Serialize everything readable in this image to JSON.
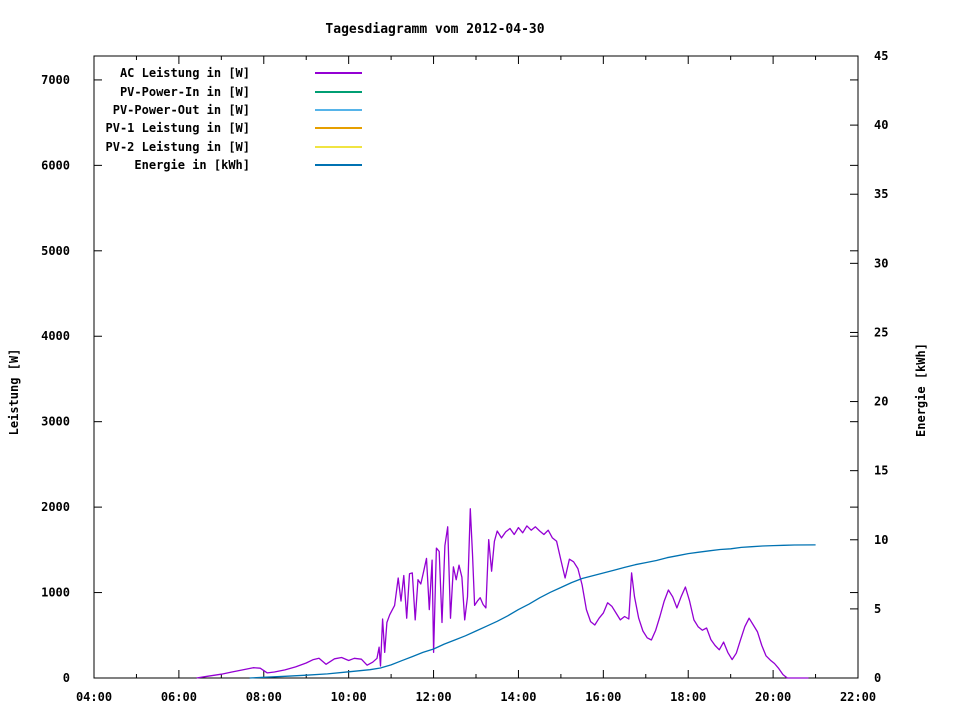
{
  "title": "Tagesdiagramm vom 2012-04-30",
  "background_color": "#ffffff",
  "text_color": "#000000",
  "chart_data": {
    "type": "line",
    "title": "Tagesdiagramm vom 2012-04-30",
    "grid": false,
    "legend_position": "top-left-inside",
    "x_axis": {
      "kind": "time",
      "start": "04:00",
      "end": "22:00",
      "major_ticks": [
        "04:00",
        "06:00",
        "08:00",
        "10:00",
        "12:00",
        "14:00",
        "16:00",
        "18:00",
        "20:00",
        "22:00"
      ],
      "minor_tick_interval_minutes": 60
    },
    "y1_axis": {
      "label": "Leistung [W]",
      "min": 0,
      "max": 7280,
      "ticks": [
        0,
        1000,
        2000,
        3000,
        4000,
        5000,
        6000,
        7000
      ]
    },
    "y2_axis": {
      "label": "Energie [kWh]",
      "min": 0,
      "max": 45,
      "ticks": [
        0,
        5,
        10,
        15,
        20,
        25,
        30,
        35,
        40,
        45
      ]
    },
    "series": [
      {
        "name": "AC Leistung in [W]",
        "color": "#9400d3",
        "axis": "y1",
        "unit": "W",
        "points": [
          [
            "06:25",
            0
          ],
          [
            "06:40",
            20
          ],
          [
            "07:00",
            45
          ],
          [
            "07:15",
            70
          ],
          [
            "07:30",
            95
          ],
          [
            "07:45",
            120
          ],
          [
            "07:55",
            115
          ],
          [
            "08:05",
            60
          ],
          [
            "08:15",
            70
          ],
          [
            "08:30",
            95
          ],
          [
            "08:45",
            130
          ],
          [
            "09:00",
            175
          ],
          [
            "09:10",
            215
          ],
          [
            "09:18",
            230
          ],
          [
            "09:28",
            160
          ],
          [
            "09:40",
            225
          ],
          [
            "09:50",
            240
          ],
          [
            "10:00",
            205
          ],
          [
            "10:08",
            230
          ],
          [
            "10:18",
            220
          ],
          [
            "10:26",
            150
          ],
          [
            "10:34",
            185
          ],
          [
            "10:40",
            230
          ],
          [
            "10:43",
            360
          ],
          [
            "10:45",
            140
          ],
          [
            "10:48",
            690
          ],
          [
            "10:51",
            300
          ],
          [
            "10:54",
            650
          ],
          [
            "10:58",
            740
          ],
          [
            "11:05",
            850
          ],
          [
            "11:10",
            1170
          ],
          [
            "11:14",
            900
          ],
          [
            "11:18",
            1200
          ],
          [
            "11:22",
            700
          ],
          [
            "11:26",
            1220
          ],
          [
            "11:30",
            1230
          ],
          [
            "11:34",
            680
          ],
          [
            "11:38",
            1150
          ],
          [
            "11:42",
            1100
          ],
          [
            "11:46",
            1250
          ],
          [
            "11:50",
            1400
          ],
          [
            "11:54",
            800
          ],
          [
            "11:58",
            1380
          ],
          [
            "12:00",
            300
          ],
          [
            "12:04",
            1520
          ],
          [
            "12:08",
            1480
          ],
          [
            "12:12",
            650
          ],
          [
            "12:16",
            1550
          ],
          [
            "12:20",
            1770
          ],
          [
            "12:24",
            700
          ],
          [
            "12:28",
            1300
          ],
          [
            "12:32",
            1150
          ],
          [
            "12:36",
            1320
          ],
          [
            "12:40",
            1180
          ],
          [
            "12:44",
            680
          ],
          [
            "12:48",
            950
          ],
          [
            "12:52",
            1980
          ],
          [
            "12:55",
            1450
          ],
          [
            "12:58",
            850
          ],
          [
            "13:02",
            900
          ],
          [
            "13:06",
            940
          ],
          [
            "13:10",
            860
          ],
          [
            "13:14",
            820
          ],
          [
            "13:18",
            1620
          ],
          [
            "13:22",
            1250
          ],
          [
            "13:26",
            1600
          ],
          [
            "13:30",
            1720
          ],
          [
            "13:36",
            1640
          ],
          [
            "13:42",
            1710
          ],
          [
            "13:48",
            1750
          ],
          [
            "13:54",
            1680
          ],
          [
            "14:00",
            1760
          ],
          [
            "14:06",
            1700
          ],
          [
            "14:12",
            1780
          ],
          [
            "14:18",
            1730
          ],
          [
            "14:24",
            1770
          ],
          [
            "14:30",
            1720
          ],
          [
            "14:36",
            1680
          ],
          [
            "14:42",
            1730
          ],
          [
            "14:48",
            1640
          ],
          [
            "14:54",
            1600
          ],
          [
            "15:00",
            1380
          ],
          [
            "15:06",
            1170
          ],
          [
            "15:12",
            1390
          ],
          [
            "15:18",
            1360
          ],
          [
            "15:24",
            1280
          ],
          [
            "15:30",
            1090
          ],
          [
            "15:36",
            800
          ],
          [
            "15:42",
            660
          ],
          [
            "15:48",
            620
          ],
          [
            "15:54",
            700
          ],
          [
            "16:00",
            760
          ],
          [
            "16:06",
            880
          ],
          [
            "16:12",
            840
          ],
          [
            "16:18",
            760
          ],
          [
            "16:24",
            680
          ],
          [
            "16:30",
            720
          ],
          [
            "16:36",
            690
          ],
          [
            "16:40",
            1230
          ],
          [
            "16:44",
            950
          ],
          [
            "16:50",
            700
          ],
          [
            "16:56",
            550
          ],
          [
            "17:02",
            470
          ],
          [
            "17:08",
            445
          ],
          [
            "17:14",
            560
          ],
          [
            "17:20",
            720
          ],
          [
            "17:26",
            900
          ],
          [
            "17:32",
            1030
          ],
          [
            "17:38",
            950
          ],
          [
            "17:44",
            820
          ],
          [
            "17:50",
            950
          ],
          [
            "17:56",
            1065
          ],
          [
            "18:02",
            900
          ],
          [
            "18:08",
            680
          ],
          [
            "18:14",
            600
          ],
          [
            "18:20",
            560
          ],
          [
            "18:26",
            585
          ],
          [
            "18:32",
            450
          ],
          [
            "18:38",
            380
          ],
          [
            "18:44",
            330
          ],
          [
            "18:50",
            420
          ],
          [
            "18:56",
            300
          ],
          [
            "19:02",
            215
          ],
          [
            "19:08",
            290
          ],
          [
            "19:14",
            450
          ],
          [
            "19:20",
            600
          ],
          [
            "19:26",
            700
          ],
          [
            "19:32",
            620
          ],
          [
            "19:38",
            540
          ],
          [
            "19:44",
            380
          ],
          [
            "19:50",
            260
          ],
          [
            "19:56",
            210
          ],
          [
            "20:02",
            170
          ],
          [
            "20:08",
            110
          ],
          [
            "20:14",
            40
          ],
          [
            "20:20",
            0
          ],
          [
            "20:35",
            0
          ],
          [
            "20:50",
            0
          ]
        ]
      },
      {
        "name": "PV-Power-In in [W]",
        "color": "#009e73",
        "axis": "y1",
        "unit": "W",
        "points": []
      },
      {
        "name": "PV-Power-Out in [W]",
        "color": "#56b4e9",
        "axis": "y1",
        "unit": "W",
        "points": []
      },
      {
        "name": "PV-1 Leistung in [W]",
        "color": "#e69f00",
        "axis": "y1",
        "unit": "W",
        "points": []
      },
      {
        "name": "PV-2 Leistung in [W]",
        "color": "#f0e442",
        "axis": "y1",
        "unit": "W",
        "points": []
      },
      {
        "name": "Energie in [kWh]",
        "color": "#0072b2",
        "axis": "y2",
        "unit": "kWh",
        "points": [
          [
            "07:40",
            0
          ],
          [
            "08:00",
            0.05
          ],
          [
            "08:30",
            0.12
          ],
          [
            "09:00",
            0.2
          ],
          [
            "09:30",
            0.3
          ],
          [
            "10:00",
            0.45
          ],
          [
            "10:30",
            0.6
          ],
          [
            "10:45",
            0.72
          ],
          [
            "11:00",
            0.95
          ],
          [
            "11:15",
            1.25
          ],
          [
            "11:30",
            1.55
          ],
          [
            "11:45",
            1.85
          ],
          [
            "12:00",
            2.1
          ],
          [
            "12:15",
            2.45
          ],
          [
            "12:30",
            2.75
          ],
          [
            "12:45",
            3.05
          ],
          [
            "13:00",
            3.4
          ],
          [
            "13:15",
            3.75
          ],
          [
            "13:30",
            4.1
          ],
          [
            "13:45",
            4.5
          ],
          [
            "14:00",
            4.95
          ],
          [
            "14:15",
            5.35
          ],
          [
            "14:30",
            5.8
          ],
          [
            "14:45",
            6.2
          ],
          [
            "15:00",
            6.55
          ],
          [
            "15:15",
            6.9
          ],
          [
            "15:30",
            7.2
          ],
          [
            "15:45",
            7.4
          ],
          [
            "16:00",
            7.6
          ],
          [
            "16:15",
            7.8
          ],
          [
            "16:30",
            8.0
          ],
          [
            "16:45",
            8.2
          ],
          [
            "17:00",
            8.35
          ],
          [
            "17:15",
            8.5
          ],
          [
            "17:30",
            8.7
          ],
          [
            "17:45",
            8.85
          ],
          [
            "18:00",
            9.0
          ],
          [
            "18:15",
            9.1
          ],
          [
            "18:30",
            9.2
          ],
          [
            "18:45",
            9.3
          ],
          [
            "19:00",
            9.35
          ],
          [
            "19:15",
            9.45
          ],
          [
            "19:30",
            9.5
          ],
          [
            "19:45",
            9.55
          ],
          [
            "20:00",
            9.58
          ],
          [
            "20:15",
            9.6
          ],
          [
            "20:30",
            9.62
          ],
          [
            "21:00",
            9.63
          ]
        ]
      }
    ]
  },
  "legend": {
    "items": [
      {
        "label": "AC Leistung in [W]",
        "color": "#9400d3"
      },
      {
        "label": "PV-Power-In in [W]",
        "color": "#009e73"
      },
      {
        "label": "PV-Power-Out in [W]",
        "color": "#56b4e9"
      },
      {
        "label": "PV-1 Leistung in [W]",
        "color": "#e69f00"
      },
      {
        "label": "PV-2 Leistung in [W]",
        "color": "#f0e442"
      },
      {
        "label": "Energie in [kWh]",
        "color": "#0072b2"
      }
    ]
  }
}
